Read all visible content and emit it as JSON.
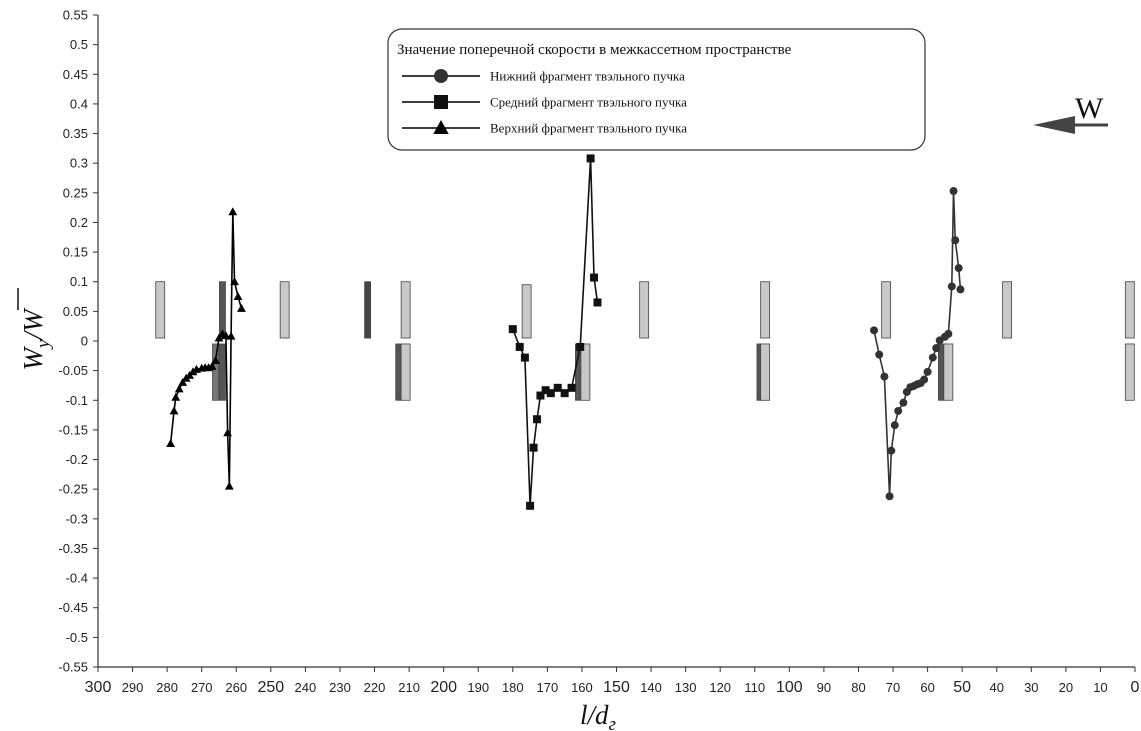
{
  "chart_data": {
    "type": "line",
    "title": "",
    "xlabel": "l/d",
    "xlabel_sub": "г",
    "ylabel_main": "W",
    "ylabel_sub": "y",
    "ylabel_den": "W",
    "xlim": [
      300,
      0
    ],
    "ylim": [
      -0.55,
      0.55
    ],
    "x_ticks": [
      300,
      290,
      280,
      270,
      260,
      250,
      240,
      230,
      220,
      210,
      200,
      190,
      180,
      170,
      160,
      150,
      140,
      130,
      120,
      110,
      100,
      90,
      80,
      70,
      60,
      50,
      40,
      30,
      20,
      10,
      0
    ],
    "y_ticks": [
      "0.55",
      "0.5",
      "0.45",
      "0.4",
      "0.35",
      "0.3",
      "0.25",
      "0.2",
      "0.15",
      "0.1",
      "0.05",
      "0",
      "-0.05",
      "-0.1",
      "-0.15",
      "-0.2",
      "-0.25",
      "-0.3",
      "-0.35",
      "-0.4",
      "-0.45",
      "-0.5",
      "-0.55"
    ],
    "grid": false,
    "legend": {
      "title": "Значение поперечной скорости в межкассетном пространстве",
      "placement": "top-center",
      "entries": [
        {
          "label": "Нижний фрагмент твэльного пучка",
          "marker": "circle"
        },
        {
          "label": "Средний фрагмент твэльного пучка",
          "marker": "square"
        },
        {
          "label": "Верхний фрагмент твэльного пучка",
          "marker": "triangle"
        }
      ]
    },
    "flow_label": "W",
    "series": [
      {
        "name": "Нижний фрагмент твэльного пучка",
        "marker": "circle",
        "color": "#333333",
        "points": [
          [
            75.5,
            0.018
          ],
          [
            74,
            -0.023
          ],
          [
            72.5,
            -0.06
          ],
          [
            71,
            -0.262
          ],
          [
            70.5,
            -0.185
          ],
          [
            69.5,
            -0.142
          ],
          [
            68.5,
            -0.118
          ],
          [
            67,
            -0.104
          ],
          [
            66,
            -0.086
          ],
          [
            65,
            -0.078
          ],
          [
            64,
            -0.076
          ],
          [
            63,
            -0.073
          ],
          [
            62,
            -0.071
          ],
          [
            61,
            -0.065
          ],
          [
            60,
            -0.052
          ],
          [
            58.5,
            -0.028
          ],
          [
            57.5,
            -0.012
          ],
          [
            56.5,
            0.001
          ],
          [
            55,
            0.007
          ],
          [
            54,
            0.012
          ],
          [
            53,
            0.092
          ],
          [
            52.5,
            0.253
          ],
          [
            52,
            0.17
          ],
          [
            51,
            0.123
          ],
          [
            50.5,
            0.087
          ]
        ]
      },
      {
        "name": "Средний фрагмент твэльного пучка",
        "marker": "square",
        "color": "#111111",
        "points": [
          [
            180,
            0.02
          ],
          [
            178,
            -0.01
          ],
          [
            176.5,
            -0.028
          ],
          [
            175,
            -0.278
          ],
          [
            174,
            -0.18
          ],
          [
            173,
            -0.132
          ],
          [
            172,
            -0.092
          ],
          [
            170.5,
            -0.083
          ],
          [
            169,
            -0.088
          ],
          [
            167,
            -0.079
          ],
          [
            165,
            -0.088
          ],
          [
            163,
            -0.079
          ],
          [
            160.5,
            -0.01
          ],
          [
            157.5,
            0.308
          ],
          [
            156.5,
            0.107
          ],
          [
            155.5,
            0.065
          ]
        ]
      },
      {
        "name": "Верхний фрагмент твэльного пучка",
        "marker": "triangle",
        "color": "#000000",
        "points": [
          [
            279,
            -0.173
          ],
          [
            278,
            -0.118
          ],
          [
            277.5,
            -0.095
          ],
          [
            276.5,
            -0.081
          ],
          [
            275.5,
            -0.07
          ],
          [
            274.5,
            -0.063
          ],
          [
            273.5,
            -0.058
          ],
          [
            272.5,
            -0.052
          ],
          [
            271.5,
            -0.048
          ],
          [
            270,
            -0.046
          ],
          [
            269,
            -0.045
          ],
          [
            268,
            -0.045
          ],
          [
            267,
            -0.043
          ],
          [
            266,
            -0.033
          ],
          [
            265,
            0.005
          ],
          [
            264,
            0.012
          ],
          [
            263,
            0.009
          ],
          [
            262.5,
            -0.155
          ],
          [
            262,
            -0.245
          ],
          [
            261.5,
            0.008
          ],
          [
            261,
            0.218
          ],
          [
            260.5,
            0.1
          ],
          [
            259.5,
            0.075
          ],
          [
            258.5,
            0.055
          ]
        ]
      }
    ],
    "spacers": [
      {
        "x": 282,
        "y0": 0.005,
        "y1": 0.1,
        "color": "#c8c8c8"
      },
      {
        "x": 264,
        "y0": 0.005,
        "y1": 0.1,
        "color": "#555555"
      },
      {
        "x": 246,
        "y0": 0.005,
        "y1": 0.1,
        "color": "#c8c8c8"
      },
      {
        "x": 222,
        "y0": 0.005,
        "y1": 0.1,
        "color": "#444444"
      },
      {
        "x": 211,
        "y0": 0.005,
        "y1": 0.1,
        "color": "#c8c8c8"
      },
      {
        "x": 176,
        "y0": 0.005,
        "y1": 0.095,
        "color": "#c8c8c8"
      },
      {
        "x": 142,
        "y0": 0.005,
        "y1": 0.1,
        "color": "#c8c8c8"
      },
      {
        "x": 107,
        "y0": 0.005,
        "y1": 0.1,
        "color": "#c8c8c8"
      },
      {
        "x": 72,
        "y0": 0.005,
        "y1": 0.1,
        "color": "#c8c8c8"
      },
      {
        "x": 37,
        "y0": 0.005,
        "y1": 0.1,
        "color": "#c8c8c8"
      },
      {
        "x": 1.5,
        "y0": 0.005,
        "y1": 0.1,
        "color": "#c8c8c8"
      },
      {
        "x": 266,
        "y0": -0.1,
        "y1": -0.005,
        "color": "#777777"
      },
      {
        "x": 264,
        "y0": -0.1,
        "y1": -0.005,
        "color": "#555555"
      },
      {
        "x": 213,
        "y0": -0.1,
        "y1": -0.005,
        "color": "#555555"
      },
      {
        "x": 211,
        "y0": -0.1,
        "y1": -0.005,
        "color": "#c8c8c8"
      },
      {
        "x": 161,
        "y0": -0.1,
        "y1": -0.005,
        "color": "#555555"
      },
      {
        "x": 159,
        "y0": -0.1,
        "y1": -0.005,
        "color": "#c8c8c8"
      },
      {
        "x": 108.5,
        "y0": -0.1,
        "y1": -0.005,
        "color": "#555555"
      },
      {
        "x": 107,
        "y0": -0.1,
        "y1": -0.005,
        "color": "#c8c8c8"
      },
      {
        "x": 56,
        "y0": -0.1,
        "y1": -0.005,
        "color": "#555555"
      },
      {
        "x": 54,
        "y0": -0.1,
        "y1": -0.005,
        "color": "#c8c8c8"
      },
      {
        "x": 1.5,
        "y0": -0.1,
        "y1": -0.005,
        "color": "#c8c8c8"
      }
    ]
  }
}
